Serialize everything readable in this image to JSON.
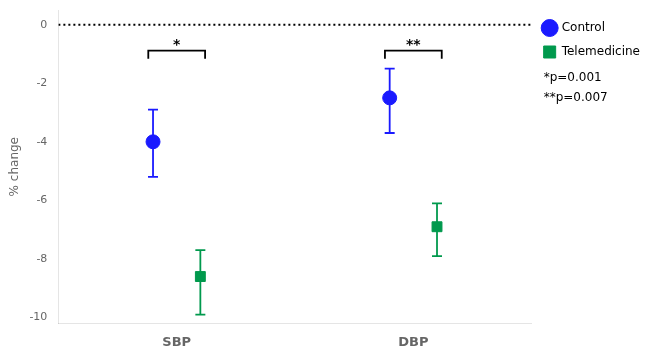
{
  "chart_data": {
    "type": "scatter",
    "categories": [
      "SBP",
      "DBP"
    ],
    "series": [
      {
        "name": "Control",
        "color": "#1a1aff",
        "marker": "circle",
        "values": [
          -4.0,
          -2.5
        ],
        "ci_lower": [
          -5.2,
          -3.7
        ],
        "ci_upper": [
          -2.9,
          -1.5
        ]
      },
      {
        "name": "Telemedicine",
        "color": "#00994d",
        "marker": "square",
        "values": [
          -8.6,
          -6.9
        ],
        "ci_lower": [
          -9.9,
          -7.9
        ],
        "ci_upper": [
          -7.7,
          -6.1
        ]
      }
    ],
    "ylabel": "% change",
    "ylim": [
      -10.2,
      0.5
    ],
    "yticks": [
      0,
      -2,
      -4,
      -6,
      -8,
      -10
    ],
    "grid": false,
    "legend": "right",
    "reference_line": {
      "y": 0,
      "line_style": "dotted"
    },
    "brackets": [
      {
        "category": "SBP",
        "label": "*"
      },
      {
        "category": "DBP",
        "label": "**"
      }
    ],
    "annotations": [
      "*p=0.001",
      "**p=0.007"
    ]
  }
}
